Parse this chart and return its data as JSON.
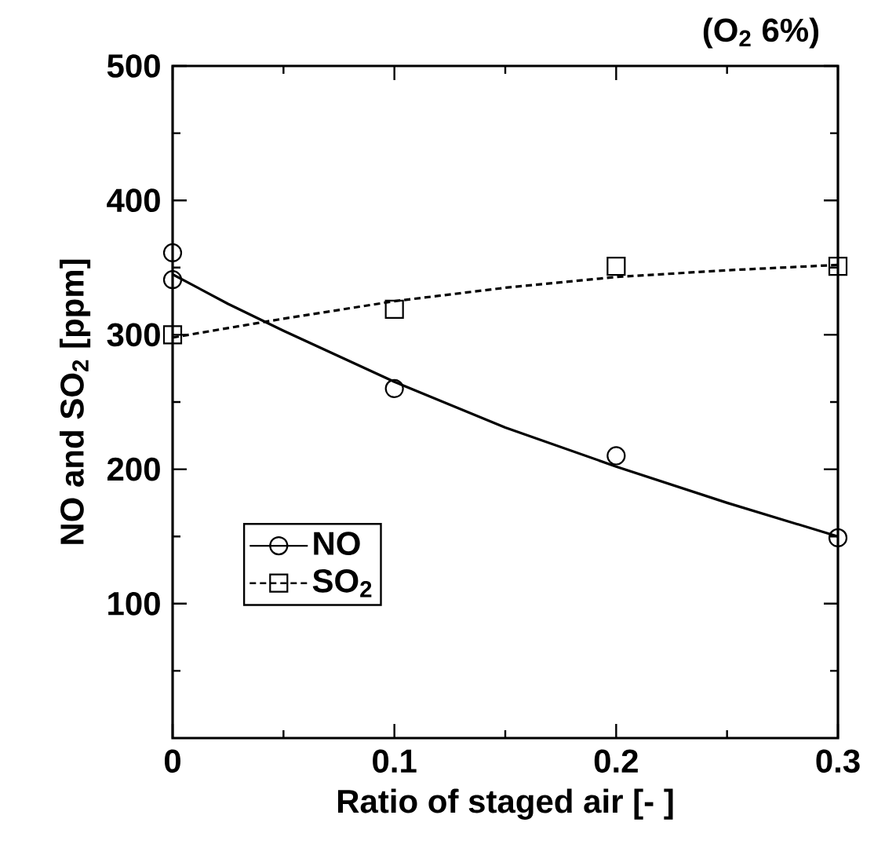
{
  "chart_data": {
    "type": "scatter",
    "title": "(O$_{2}$ 6%)",
    "xlabel": "Ratio of staged air [- ]",
    "ylabel": "NO and SO$_{2}$ [ppm]",
    "xlim": [
      0,
      0.3
    ],
    "ylim": [
      0,
      500
    ],
    "xticks": [
      0,
      {
        "value": 0.05,
        "label": null
      },
      0.1,
      {
        "value": 0.15,
        "label": null
      },
      0.2,
      {
        "value": 0.25,
        "label": null
      },
      0.3
    ],
    "yticks": [
      {
        "value": 50,
        "label": null
      },
      100,
      {
        "value": 150,
        "label": null
      },
      200,
      {
        "value": 250,
        "label": null
      },
      300,
      {
        "value": 350,
        "label": null
      },
      400,
      {
        "value": 450,
        "label": null
      },
      500
    ],
    "grid": false,
    "legend": "bottom left",
    "series": [
      {
        "name": "NO",
        "marker": "circle",
        "line_style": "solid",
        "color": "#000000",
        "x": [
          0,
          0,
          0.1,
          0.2,
          0.3
        ],
        "values": [
          361,
          341,
          260,
          210,
          149
        ]
      },
      {
        "name": "SO$_{2}$",
        "marker": "square",
        "line_style": "dashed",
        "color": "#000000",
        "x": [
          0,
          0.1,
          0.2,
          0.3
        ],
        "values": [
          300,
          319,
          351,
          351
        ]
      },
      {
        "type": "line",
        "marker": "none",
        "line_style": "solid",
        "color": "#000000",
        "x": [
          0,
          0.025,
          0.05,
          0.075,
          0.1,
          0.15,
          0.2,
          0.25,
          0.3
        ],
        "values": [
          345,
          323,
          303,
          284,
          265,
          231,
          202,
          175,
          150
        ]
      },
      {
        "type": "line",
        "marker": "none",
        "line_style": "dashed",
        "color": "#000000",
        "x": [
          0,
          0.05,
          0.1,
          0.15,
          0.2,
          0.25,
          0.3
        ],
        "values": [
          298,
          312,
          325,
          335,
          343,
          348,
          352
        ]
      }
    ]
  }
}
